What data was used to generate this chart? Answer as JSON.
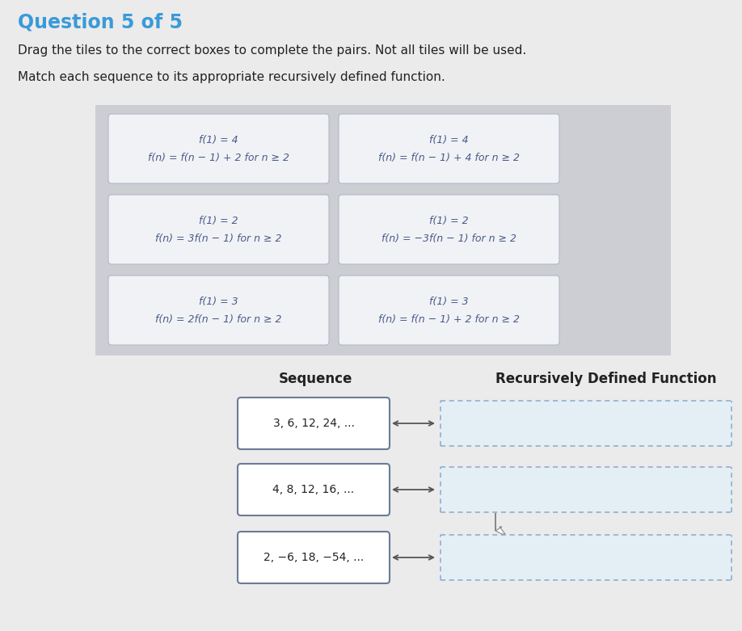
{
  "page_bg": "#ebebeb",
  "title": "Question 5 of 5",
  "title_color": "#3a9ad9",
  "title_fontsize": 17,
  "subtitle1": "Drag the tiles to the correct boxes to complete the pairs. Not all tiles will be used.",
  "subtitle2": "Match each sequence to its appropriate recursively defined function.",
  "subtitle_fontsize": 11,
  "panel_bg": "#ccced4",
  "tile_bg": "#f0f2f5",
  "tile_border": "#b0b8c8",
  "tile_text_color": "#4a5a8a",
  "tile_fontsize": 9,
  "tiles": [
    [
      "f(1) = 4",
      "f(n) = f(n − 1) + 2 for n ≥ 2"
    ],
    [
      "f(1) = 4",
      "f(n) = f(n − 1) + 4 for n ≥ 2"
    ],
    [
      "f(1) = 2",
      "f(n) = 3f(n − 1) for n ≥ 2"
    ],
    [
      "f(1) = 2",
      "f(n) = −3f(n − 1) for n ≥ 2"
    ],
    [
      "f(1) = 3",
      "f(n) = 2f(n − 1) for n ≥ 2"
    ],
    [
      "f(1) = 3",
      "f(n) = f(n − 1) + 2 for n ≥ 2"
    ]
  ],
  "col_header_sequence": "Sequence",
  "col_header_function": "Recursively Defined Function",
  "header_fontsize": 12,
  "sequences": [
    "3, 6, 12, 24, ...",
    "4, 8, 12, 16, ...",
    "2, −6, 18, −54, ..."
  ],
  "seq_box_bg": "#ffffff",
  "seq_box_border": "#6a7a9a",
  "seq_fontsize": 10,
  "answer_box_border": "#88aacc",
  "answer_box_bg": "#dce8f0"
}
